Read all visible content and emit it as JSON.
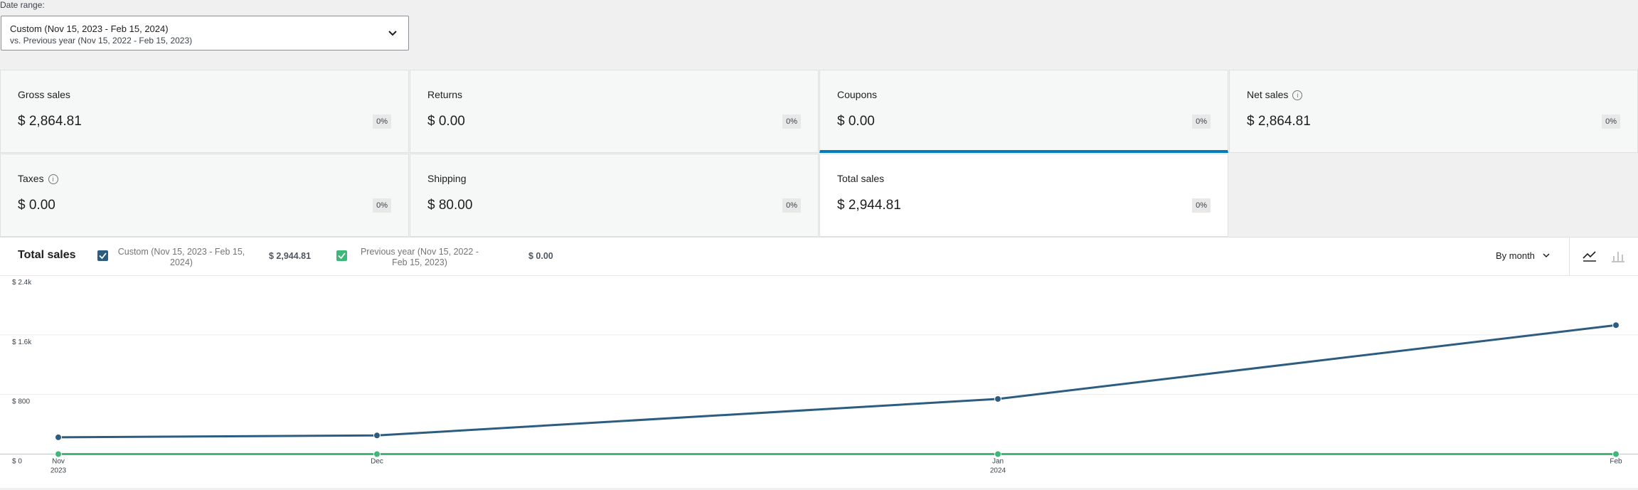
{
  "date_range": {
    "label": "Date range:",
    "primary": "Custom (Nov 15, 2023 - Feb 15, 2024)",
    "secondary": "vs. Previous year (Nov 15, 2022 - Feb 15, 2023)"
  },
  "metrics": [
    {
      "label": "Gross sales",
      "value": "$ 2,864.81",
      "delta": "0%"
    },
    {
      "label": "Returns",
      "value": "$ 0.00",
      "delta": "0%"
    },
    {
      "label": "Coupons",
      "value": "$ 0.00",
      "delta": "0%"
    },
    {
      "label": "Net sales",
      "value": "$ 2,864.81",
      "delta": "0%"
    },
    {
      "label": "Taxes",
      "value": "$ 0.00",
      "delta": "0%"
    },
    {
      "label": "Shipping",
      "value": "$ 80.00",
      "delta": "0%"
    },
    {
      "label": "Total sales",
      "value": "$ 2,944.81",
      "delta": "0%"
    }
  ],
  "chart_data": {
    "type": "line",
    "title": "Total sales",
    "interval": "By month",
    "categories": [
      [
        "Nov",
        "2023"
      ],
      [
        "Dec"
      ],
      [
        "Jan",
        "2024"
      ],
      [
        "Feb"
      ]
    ],
    "series": [
      {
        "name": "Custom (Nov 15, 2023 - Feb 15, 2024)",
        "total": "$ 2,944.81",
        "color": "#2c5d80",
        "values": [
          225,
          250,
          740,
          1730
        ]
      },
      {
        "name": "Previous year (Nov 15, 2022 - Feb 15, 2023)",
        "total": "$ 0.00",
        "color": "#3cb878",
        "values": [
          0,
          0,
          0,
          0
        ]
      }
    ],
    "ylim": [
      0,
      2400
    ],
    "yticks": [
      {
        "value": 0,
        "label": "$ 0"
      },
      {
        "value": 800,
        "label": "$ 800"
      },
      {
        "value": 1600,
        "label": "$ 1.6k"
      },
      {
        "value": 2400,
        "label": "$ 2.4k"
      }
    ],
    "grid": true
  }
}
